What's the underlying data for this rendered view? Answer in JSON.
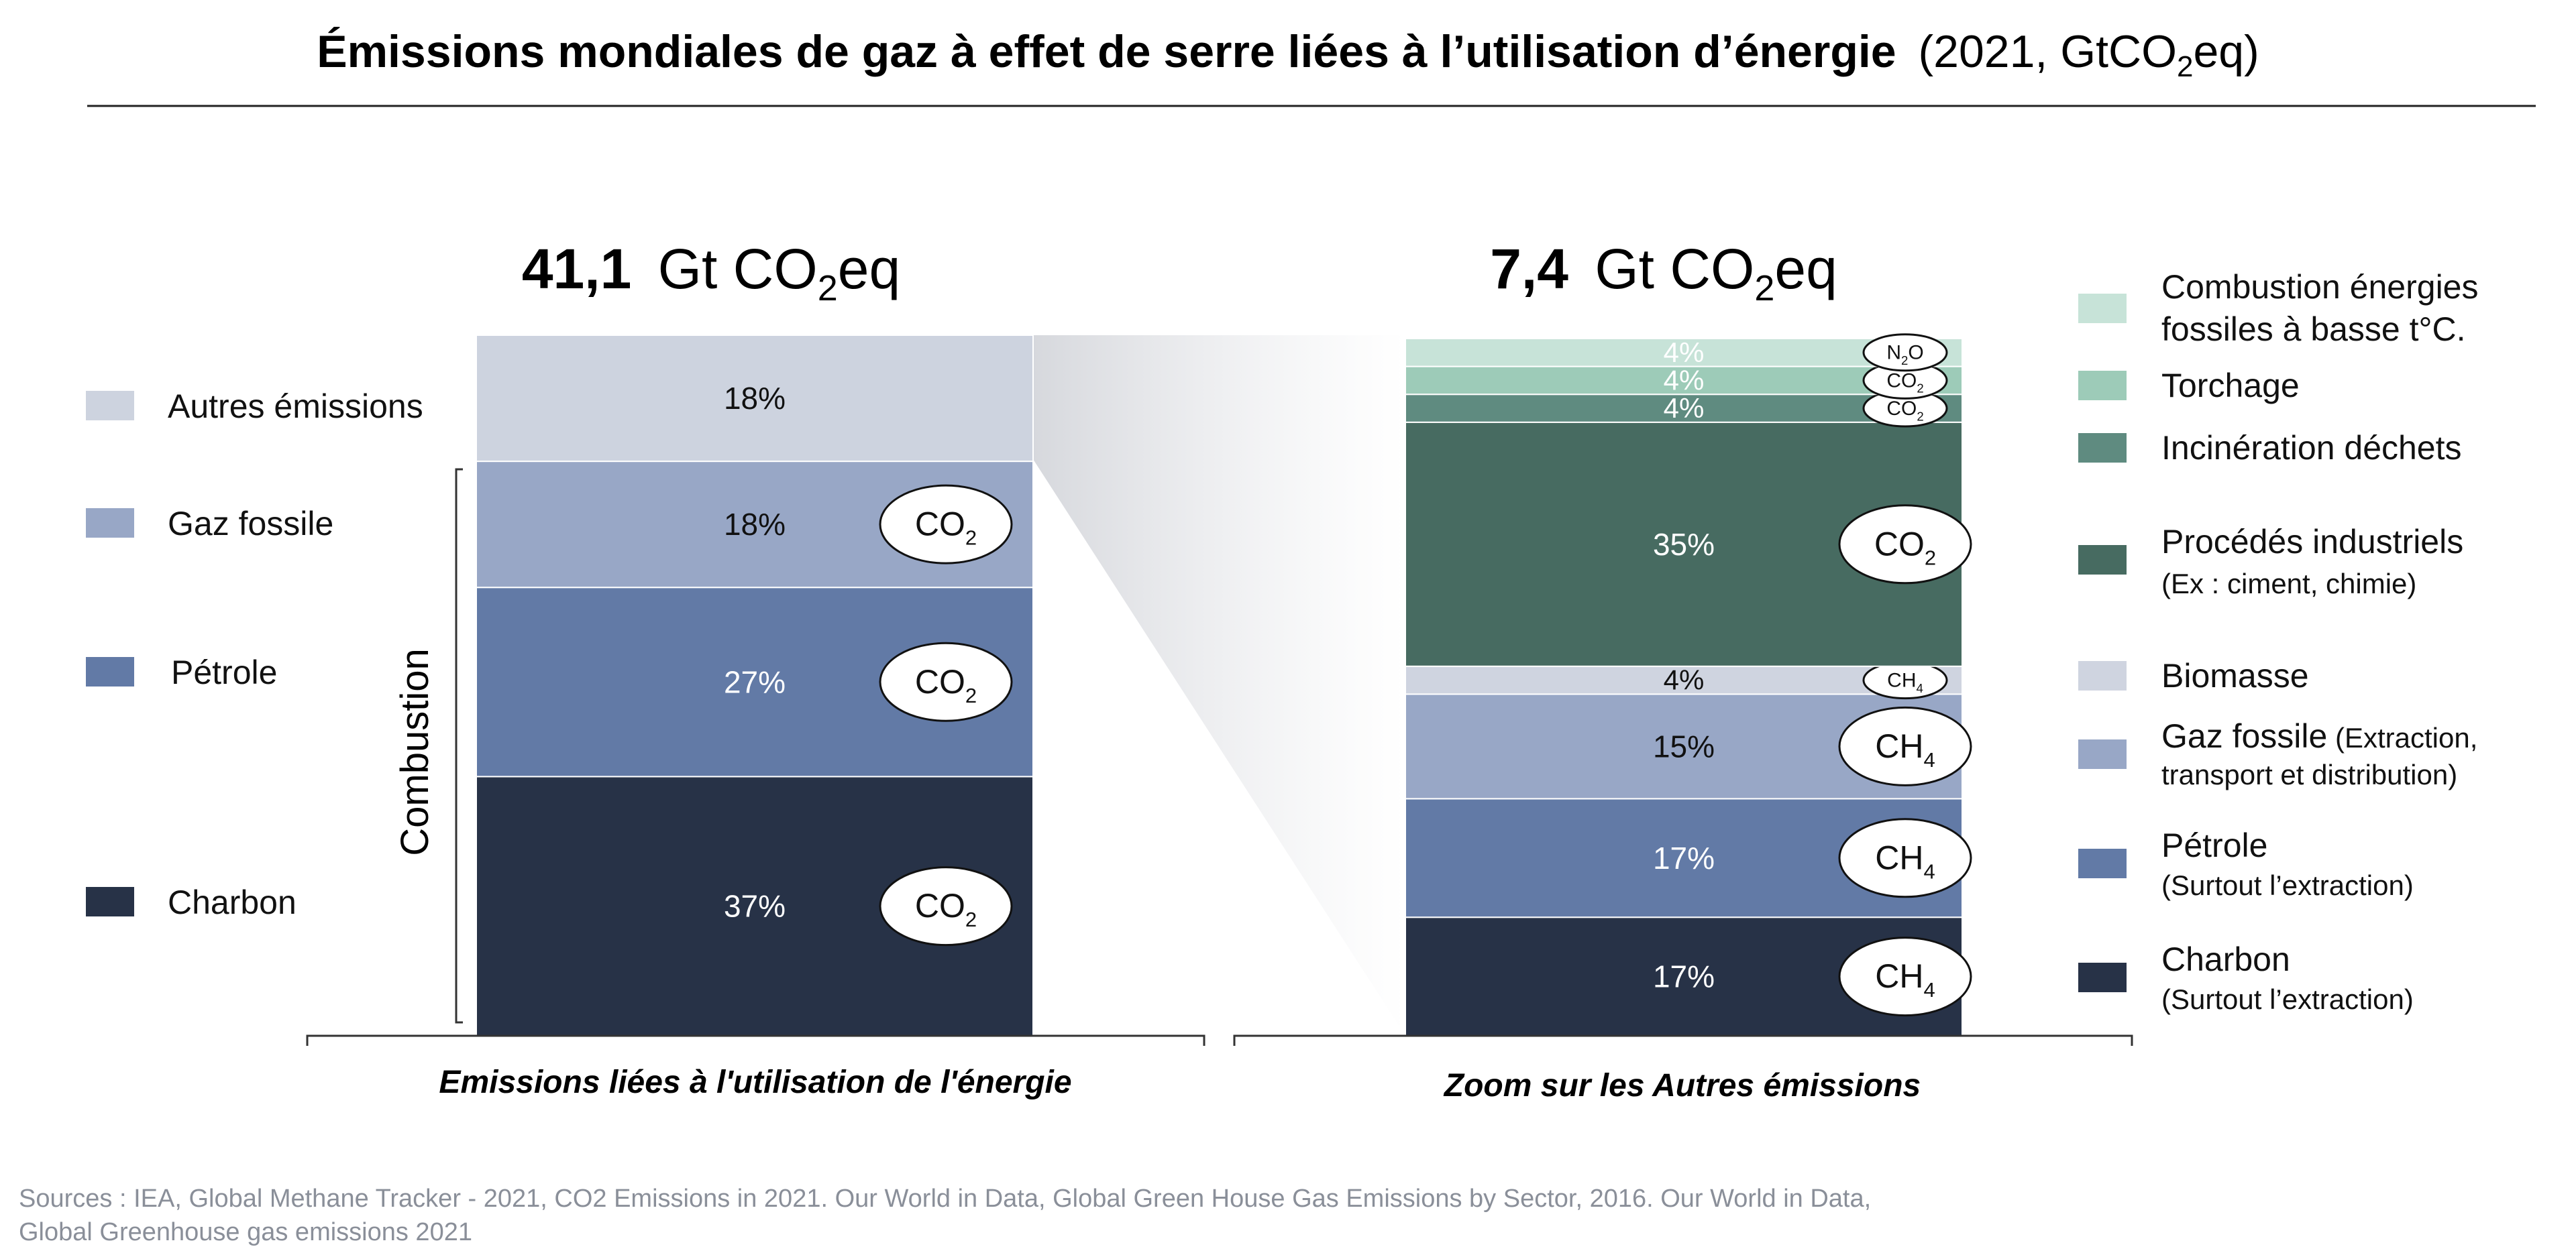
{
  "title": {
    "bold": "Émissions mondiales de gaz à effet de serre liées à l’utilisation d’énergie",
    "normal_prefix": "(2021, GtCO",
    "normal_sub": "2",
    "normal_suffix": "eq)"
  },
  "colors": {
    "autres": "#cdd3df",
    "gaz": "#98a7c6",
    "petrole": "#627aa6",
    "charbon": "#273247",
    "basse_temp": "#c7e3d8",
    "torchage": "#9dcbb8",
    "incineration": "#5f8b80",
    "procedes": "#476b61",
    "biomasse": "#cfd4e0",
    "text_dark": "#111111",
    "source_gray": "#8a8f99"
  },
  "chart_data": [
    {
      "type": "bar",
      "stacked": true,
      "total_value": "41,1",
      "total_unit_prefix": "Gt CO",
      "total_unit_sub": "2",
      "total_unit_suffix": "eq",
      "xlabel": "Emissions liées à l'utilisation de l'énergie",
      "bracket_label": "Combustion",
      "segments": [
        {
          "key": "charbon",
          "label": "Charbon",
          "value": 37,
          "text": "37%",
          "gas": "CO",
          "gas_sub": "2"
        },
        {
          "key": "petrole",
          "label": "Pétrole",
          "value": 27,
          "text": "27%",
          "gas": "CO",
          "gas_sub": "2"
        },
        {
          "key": "gaz",
          "label": "Gaz fossile",
          "value": 18,
          "text": "18%",
          "gas": "CO",
          "gas_sub": "2"
        },
        {
          "key": "autres",
          "label": "Autres émissions",
          "value": 18,
          "text": "18%",
          "gas": "",
          "gas_sub": ""
        }
      ]
    },
    {
      "type": "bar",
      "stacked": true,
      "total_value": "7,4",
      "total_unit_prefix": "Gt CO",
      "total_unit_sub": "2",
      "total_unit_suffix": "eq",
      "xlabel": "Zoom sur les Autres émissions",
      "segments": [
        {
          "key": "charbon",
          "label": "Charbon",
          "sublabel": "(Surtout l’extraction)",
          "value": 17,
          "text": "17%",
          "gas": "CH",
          "gas_sub": "4"
        },
        {
          "key": "petrole",
          "label": "Pétrole",
          "sublabel": "(Surtout l’extraction)",
          "value": 17,
          "text": "17%",
          "gas": "CH",
          "gas_sub": "4"
        },
        {
          "key": "gaz",
          "label": "Gaz fossile",
          "label_extra": " (Extraction,",
          "sublabel": "transport et distribution)",
          "value": 15,
          "text": "15%",
          "gas": "CH",
          "gas_sub": "4"
        },
        {
          "key": "biomasse",
          "label": "Biomasse",
          "value": 4,
          "text": "4%",
          "gas": "CH",
          "gas_sub": "4"
        },
        {
          "key": "procedes",
          "label": "Procédés industriels",
          "sublabel": "(Ex : ciment, chimie)",
          "value": 35,
          "text": "35%",
          "gas": "CO",
          "gas_sub": "2"
        },
        {
          "key": "incineration",
          "label": "Incinération déchets",
          "value": 4,
          "text": "4%",
          "gas": "CO",
          "gas_sub": "2"
        },
        {
          "key": "torchage",
          "label": "Torchage",
          "value": 4,
          "text": "4%",
          "gas": "CO",
          "gas_sub": "2"
        },
        {
          "key": "basse_temp",
          "label": "Combustion énergies",
          "sublabel": "fossiles à basse t°C.",
          "value": 4,
          "text": "4%",
          "gas": "N",
          "gas_sub": "2",
          "gas_suffix": "O"
        }
      ]
    }
  ],
  "source": {
    "line1": "Sources : IEA, Global Methane Tracker - 2021, CO2 Emissions in 2021. Our World in Data, Global Green House Gas Emissions by Sector, 2016. Our World in Data,",
    "line2": "Global Greenhouse gas emissions 2021"
  }
}
